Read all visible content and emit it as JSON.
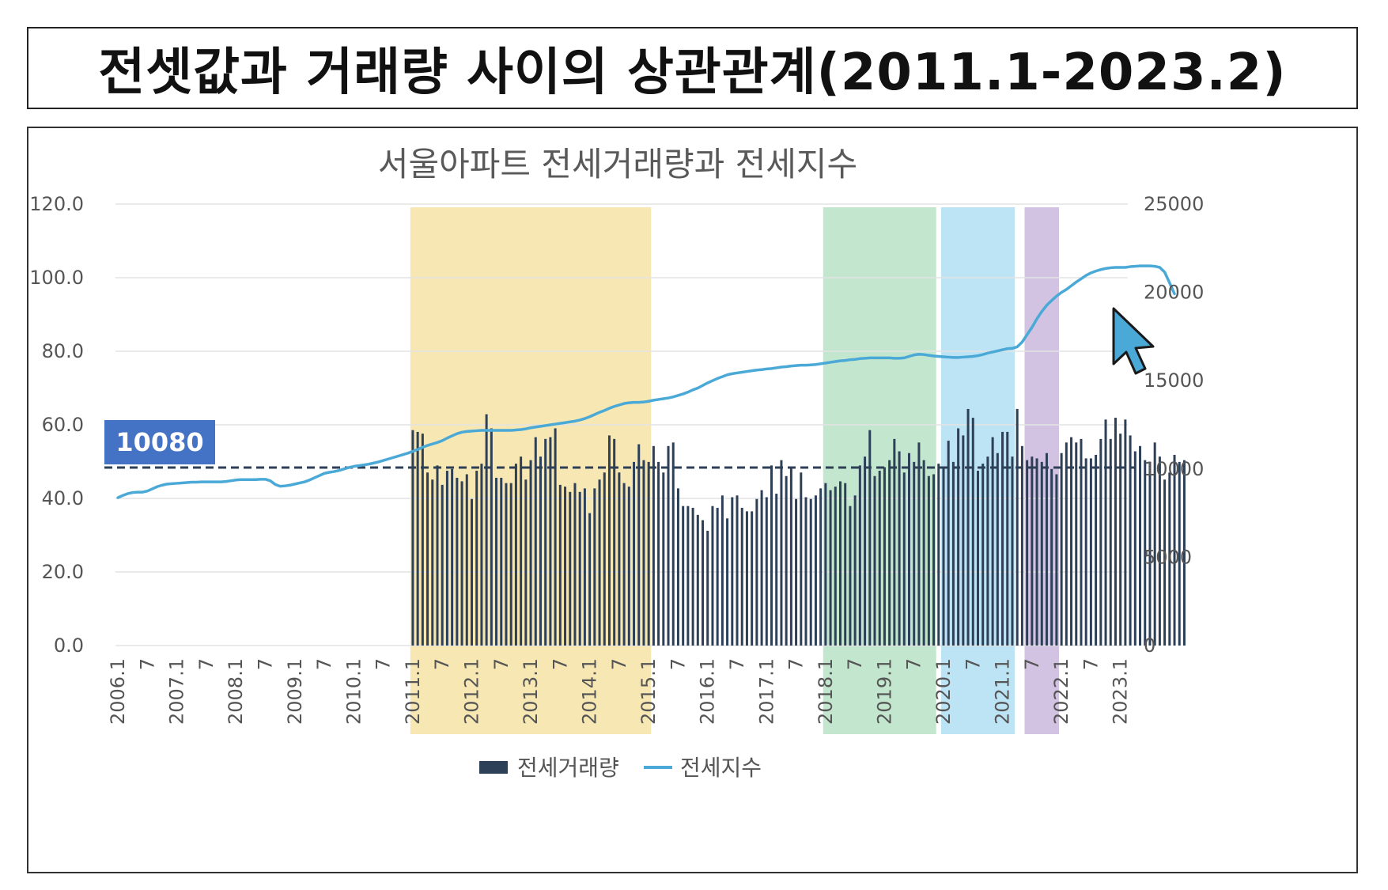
{
  "slide_title": "전셋값과 거래량 사이의 상관관계(2011.1-2023.2)",
  "chart_data": {
    "type": "bar+line",
    "title": "서울아파트 전세거래량과 전세지수",
    "y_left": {
      "ylim": [
        0,
        120
      ],
      "ticks": [
        "120.0",
        "100.0",
        "80.0",
        "60.0",
        "40.0",
        "20.0",
        "0.0"
      ]
    },
    "y_right": {
      "ylim": [
        0,
        25000
      ],
      "ticks": [
        "25000",
        "20000",
        "15000",
        "10000",
        "5000",
        "0"
      ]
    },
    "x_labels": [
      "2006.1",
      "7",
      "2007.1",
      "7",
      "2008.1",
      "7",
      "2009.1",
      "7",
      "2010.1",
      "7",
      "2011.1",
      "7",
      "2012.1",
      "7",
      "2013.1",
      "7",
      "2014.1",
      "7",
      "2015.1",
      "7",
      "2016.1",
      "7",
      "2017.1",
      "7",
      "2018.1",
      "7",
      "2019.1",
      "7",
      "2020.1",
      "7",
      "2021.1",
      "7",
      "2022.1",
      "7",
      "2023.1"
    ],
    "legend": [
      {
        "name": "전세거래량",
        "color": "#2e4057"
      },
      {
        "name": "전세지수",
        "color": "#4aa9d6"
      }
    ],
    "reference_line": {
      "value": 10080,
      "label": "10080",
      "axis": "right",
      "color": "#2e4057"
    },
    "highlight_ranges": [
      {
        "from": 60,
        "to": 108,
        "color": "#f5e3a6"
      },
      {
        "from": 144,
        "to": 166,
        "color": "#b8e2c6"
      },
      {
        "from": 168,
        "to": 182,
        "color": "#b2dff2"
      },
      {
        "from": 185,
        "to": 191,
        "color": "#c9b8dc"
      }
    ],
    "series": [
      {
        "name": "전세거래량",
        "axis": "right",
        "type": "bar",
        "start_month_index": 60,
        "values": [
          12200,
          12100,
          12000,
          9800,
          9400,
          10200,
          9100,
          9900,
          10000,
          9500,
          9300,
          9700,
          8300,
          9900,
          10300,
          13100,
          12300,
          9500,
          9500,
          9200,
          9200,
          10300,
          10700,
          9400,
          10500,
          11800,
          10700,
          11700,
          11800,
          12300,
          9100,
          9000,
          8700,
          9200,
          8700,
          8900,
          7500,
          8900,
          9400,
          9800,
          11900,
          11700,
          9800,
          9200,
          9000,
          10400,
          11400,
          10500,
          10400,
          11300,
          10400,
          9800,
          11300,
          11500,
          8900,
          7900,
          7900,
          7800,
          7400,
          7100,
          6500,
          7900,
          7800,
          8500,
          7200,
          8400,
          8500,
          7800,
          7600,
          7600,
          8300,
          8800,
          8400,
          10200,
          8600,
          10500,
          9600,
          10100,
          8300,
          9800,
          8400,
          8300,
          8500,
          8900,
          9200,
          8800,
          9000,
          9300,
          9200,
          7900,
          8500,
          10200,
          10700,
          12200,
          9600,
          9900,
          10100,
          10500,
          11700,
          11000,
          9800,
          10900,
          10400,
          11500,
          10500,
          9600,
          9700,
          10300,
          10100,
          11600,
          10400,
          12300,
          11900,
          13400,
          12900,
          9900,
          10300,
          10700,
          11800,
          10900,
          12100,
          12100,
          10700,
          13400,
          11300,
          10500,
          10700,
          10600,
          10400,
          10900,
          10000,
          9700,
          10900,
          11500,
          11800,
          11500,
          11700,
          10600,
          10600,
          10800,
          11700,
          12800,
          11700,
          12900,
          12000,
          12800,
          11900,
          11000,
          11300,
          10500,
          10400,
          11500,
          10700,
          9400,
          9800,
          10800,
          10400,
          10500
        ],
        "color": "#2e4057"
      },
      {
        "name": "전세지수",
        "axis": "left",
        "type": "line",
        "start_month_index": 0,
        "values": [
          40.2,
          40.8,
          41.3,
          41.6,
          41.7,
          41.7,
          42.0,
          42.6,
          43.2,
          43.6,
          43.9,
          44.0,
          44.1,
          44.2,
          44.3,
          44.4,
          44.4,
          44.5,
          44.5,
          44.5,
          44.5,
          44.5,
          44.6,
          44.8,
          45.0,
          45.1,
          45.1,
          45.1,
          45.1,
          45.2,
          45.2,
          44.8,
          43.8,
          43.3,
          43.4,
          43.6,
          43.9,
          44.2,
          44.5,
          45.0,
          45.6,
          46.2,
          46.8,
          47.1,
          47.3,
          47.6,
          48.0,
          48.4,
          48.7,
          48.9,
          49.1,
          49.3,
          49.6,
          49.9,
          50.3,
          50.7,
          51.1,
          51.5,
          51.9,
          52.3,
          52.8,
          53.3,
          53.9,
          54.4,
          54.8,
          55.2,
          55.7,
          56.4,
          57.0,
          57.6,
          58.0,
          58.2,
          58.3,
          58.4,
          58.5,
          58.5,
          58.5,
          58.5,
          58.5,
          58.5,
          58.5,
          58.6,
          58.7,
          58.9,
          59.2,
          59.4,
          59.6,
          59.8,
          60.0,
          60.2,
          60.4,
          60.6,
          60.8,
          61.0,
          61.3,
          61.7,
          62.2,
          62.8,
          63.4,
          63.9,
          64.5,
          65.0,
          65.4,
          65.8,
          66.0,
          66.1,
          66.1,
          66.2,
          66.4,
          66.7,
          66.9,
          67.1,
          67.3,
          67.6,
          68.0,
          68.4,
          68.9,
          69.5,
          70.0,
          70.7,
          71.4,
          72.0,
          72.6,
          73.1,
          73.6,
          73.9,
          74.1,
          74.3,
          74.5,
          74.7,
          74.9,
          75.0,
          75.2,
          75.3,
          75.5,
          75.7,
          75.8,
          76.0,
          76.1,
          76.2,
          76.2,
          76.3,
          76.4,
          76.6,
          76.8,
          77.0,
          77.2,
          77.4,
          77.5,
          77.7,
          77.8,
          78.0,
          78.1,
          78.2,
          78.2,
          78.2,
          78.2,
          78.2,
          78.1,
          78.1,
          78.2,
          78.6,
          79.0,
          79.2,
          79.1,
          78.9,
          78.7,
          78.6,
          78.5,
          78.4,
          78.3,
          78.3,
          78.4,
          78.5,
          78.6,
          78.8,
          79.1,
          79.5,
          79.8,
          80.1,
          80.4,
          80.7,
          80.8,
          81.2,
          82.5,
          84.5,
          86.5,
          88.8,
          90.8,
          92.5,
          93.8,
          95.0,
          96.0,
          96.8,
          97.8,
          98.8,
          99.7,
          100.6,
          101.3,
          101.8,
          102.2,
          102.5,
          102.7,
          102.8,
          102.8,
          102.8,
          103.0,
          103.1,
          103.2,
          103.2,
          103.2,
          103.1,
          102.8,
          101.5,
          98.6,
          95.6
        ],
        "color": "#4aa9d6"
      }
    ]
  }
}
